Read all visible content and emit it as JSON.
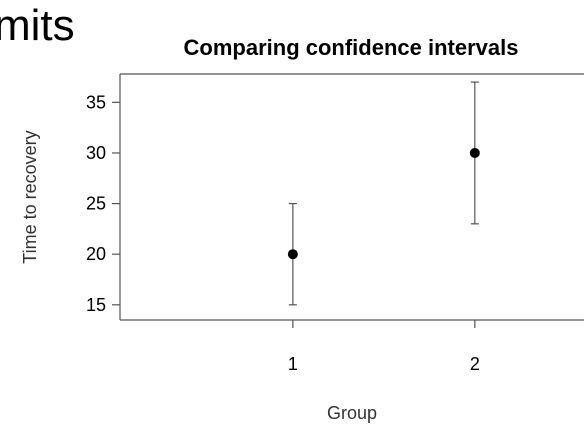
{
  "fragment_text": "mits",
  "chart_data": {
    "type": "scatter",
    "title": "Comparing confidence intervals",
    "xlabel": "Group",
    "ylabel": "Time to recovery",
    "x_ticks": [
      "1",
      "2"
    ],
    "y_ticks": [
      "15",
      "20",
      "25",
      "30",
      "35"
    ],
    "ylim": [
      13.5,
      37.8
    ],
    "xlim": [
      0.05,
      2.6
    ],
    "grid": false,
    "series": [
      {
        "points": [
          {
            "x": 1,
            "y": 20,
            "lower": 15,
            "upper": 25
          },
          {
            "x": 2,
            "y": 30,
            "lower": 23,
            "upper": 37
          }
        ]
      }
    ],
    "colors": {
      "points": "#000000",
      "error_bars": "#555555",
      "frame": "#555555"
    }
  }
}
